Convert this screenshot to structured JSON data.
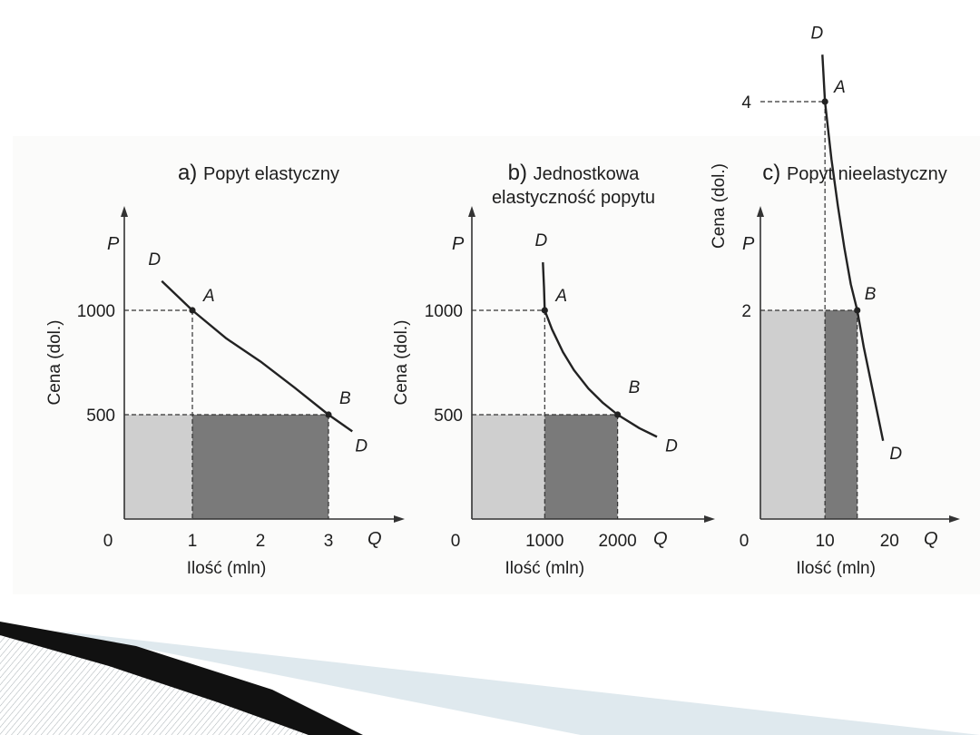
{
  "slide": {
    "background": "#ffffff",
    "decor_colors": {
      "dark_stripe": "#111111",
      "light_stripe": "#dfe9ee",
      "hatch": "#a8b0b4"
    }
  },
  "colors": {
    "curve": "#222222",
    "axis": "#333333",
    "light_area": "#cfcfcf",
    "dark_area": "#7a7a7a",
    "guide": "#333333"
  },
  "chart_data": [
    {
      "type": "line",
      "panel_letter": "a)",
      "title": "Popyt elastyczny",
      "title_line2": "",
      "xlabel": "Ilość (mln)",
      "ylabel": "Cena (dol.)",
      "x_axis_symbol": "Q",
      "y_axis_symbol": "P",
      "origin_label": "0",
      "xlim": [
        0,
        3.8
      ],
      "ylim": [
        0,
        2000
      ],
      "x_ticks": [
        "1",
        "2",
        "3"
      ],
      "x_tick_values": [
        1,
        2,
        3
      ],
      "y_ticks": [
        "500",
        "1000"
      ],
      "y_tick_values": [
        500,
        1000
      ],
      "series": [
        {
          "name": "D",
          "x": [
            0.55,
            1.0,
            1.5,
            2.0,
            2.5,
            3.0,
            3.35
          ],
          "y": [
            1140,
            1000,
            865,
            755,
            630,
            500,
            420
          ]
        }
      ],
      "points": [
        {
          "label": "A",
          "x": 1,
          "y": 1000
        },
        {
          "label": "B",
          "x": 3,
          "y": 500
        }
      ],
      "curve_end_labels": [
        "D",
        "D"
      ],
      "areas": [
        {
          "shade": "light",
          "x0": 0,
          "x1": 1,
          "y0": 0,
          "y1": 500
        },
        {
          "shade": "dark",
          "x0": 1,
          "x1": 3,
          "y0": 0,
          "y1": 500
        }
      ]
    },
    {
      "type": "line",
      "panel_letter": "b)",
      "title": "Jednostkowa",
      "title_line2": "elastyczność popytu",
      "xlabel": "Ilość (mln)",
      "ylabel": "Cena (dol.)",
      "x_axis_symbol": "Q",
      "y_axis_symbol": "P",
      "origin_label": "0",
      "xlim": [
        0,
        3200
      ],
      "ylim": [
        0,
        2000
      ],
      "x_ticks": [
        "1000",
        "2000"
      ],
      "x_tick_values": [
        1000,
        2000
      ],
      "y_ticks": [
        "500",
        "1000"
      ],
      "y_tick_values": [
        500,
        1000
      ],
      "series": [
        {
          "name": "D",
          "x": [
            1000,
            1100,
            1250,
            1400,
            1600,
            1800,
            2000,
            2300,
            2540
          ],
          "y": [
            1000,
            909,
            800,
            714,
            625,
            556,
            500,
            435,
            394
          ]
        }
      ],
      "series_extension_up": {
        "x": [
          1000,
          990,
          975
        ],
        "y": [
          1000,
          1110,
          1230
        ]
      },
      "points": [
        {
          "label": "A",
          "x": 1000,
          "y": 1000
        },
        {
          "label": "B",
          "x": 2000,
          "y": 500
        }
      ],
      "curve_end_labels": [
        "D",
        "D"
      ],
      "areas": [
        {
          "shade": "light",
          "x0": 0,
          "x1": 1000,
          "y0": 0,
          "y1": 500
        },
        {
          "shade": "dark",
          "x0": 1000,
          "x1": 2000,
          "y0": 0,
          "y1": 500
        }
      ]
    },
    {
      "type": "line",
      "panel_letter": "c)",
      "title": "Popyt nieelastyczny",
      "title_line2": "",
      "xlabel": "Ilość (mln)",
      "ylabel": "Cena (dol.)",
      "x_axis_symbol": "Q",
      "y_axis_symbol": "P",
      "origin_label": "0",
      "xlim": [
        0,
        26
      ],
      "ylim": [
        0,
        8
      ],
      "x_ticks": [
        "10",
        "20"
      ],
      "x_tick_values": [
        10,
        20
      ],
      "y_ticks": [
        "2",
        "4"
      ],
      "y_tick_values": [
        2,
        4
      ],
      "series": [
        {
          "name": "D",
          "x": [
            9.6,
            10.0,
            11.0,
            12.0,
            13.0,
            14.0,
            15.0,
            16.0,
            17.0,
            18.0,
            19.0
          ],
          "y": [
            4.45,
            4.0,
            3.45,
            3.0,
            2.6,
            2.25,
            2.0,
            1.65,
            1.35,
            1.05,
            0.75
          ]
        }
      ],
      "points": [
        {
          "label": "A",
          "x": 10,
          "y": 4
        },
        {
          "label": "B",
          "x": 15,
          "y": 2
        }
      ],
      "curve_end_labels": [
        "D",
        "D"
      ],
      "areas": [
        {
          "shade": "light",
          "x0": 0,
          "x1": 10,
          "y0": 0,
          "y1": 2
        },
        {
          "shade": "dark",
          "x0": 10,
          "x1": 15,
          "y0": 0,
          "y1": 2
        }
      ]
    }
  ]
}
